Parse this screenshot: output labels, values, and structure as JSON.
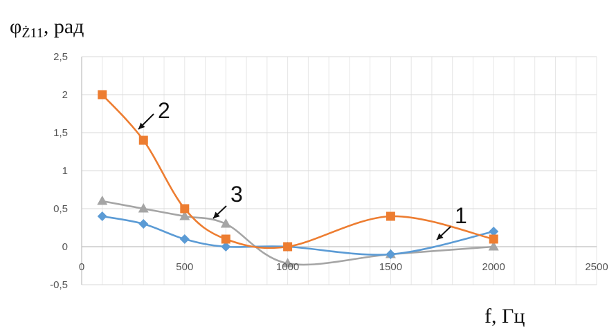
{
  "chart_data": {
    "type": "line",
    "ylabel": {
      "symbol": "φ",
      "subscript": "Ż11",
      "unit": ", рад"
    },
    "xlabel": "f, Гц",
    "xlim": [
      0,
      2500
    ],
    "ylim": [
      -0.5,
      2.5
    ],
    "x_ticks": [
      {
        "value": 0,
        "label": "0"
      },
      {
        "value": 500,
        "label": "500"
      },
      {
        "value": 1000,
        "label": "1000"
      },
      {
        "value": 1500,
        "label": "1500"
      },
      {
        "value": 2000,
        "label": "2000"
      },
      {
        "value": 2500,
        "label": "2500"
      }
    ],
    "y_ticks": [
      {
        "value": -0.5,
        "label": "-0,5"
      },
      {
        "value": 0,
        "label": "0"
      },
      {
        "value": 0.5,
        "label": "0,5"
      },
      {
        "value": 1,
        "label": "1"
      },
      {
        "value": 1.5,
        "label": "1,5"
      },
      {
        "value": 2,
        "label": "2"
      },
      {
        "value": 2.5,
        "label": "2,5"
      }
    ],
    "grid": true,
    "series": [
      {
        "id": "1",
        "color": "#5b9bd5",
        "marker": "diamond",
        "x": [
          100,
          300,
          500,
          700,
          1000,
          1500,
          2000
        ],
        "y": [
          0.4,
          0.3,
          0.1,
          0.0,
          0.0,
          -0.1,
          0.2
        ]
      },
      {
        "id": "2",
        "color": "#ed7d31",
        "marker": "square",
        "x": [
          100,
          300,
          500,
          700,
          1000,
          1500,
          2000
        ],
        "y": [
          2.0,
          1.4,
          0.5,
          0.1,
          0.0,
          0.4,
          0.1
        ]
      },
      {
        "id": "3",
        "color": "#a5a5a5",
        "marker": "triangle",
        "x": [
          100,
          300,
          500,
          700,
          1000,
          1500,
          2000
        ],
        "y": [
          0.6,
          0.5,
          0.4,
          0.3,
          -0.22,
          -0.1,
          0.0
        ]
      }
    ],
    "annotations": [
      {
        "text": "1",
        "series": "1"
      },
      {
        "text": "2",
        "series": "2"
      },
      {
        "text": "3",
        "series": "3"
      }
    ]
  }
}
